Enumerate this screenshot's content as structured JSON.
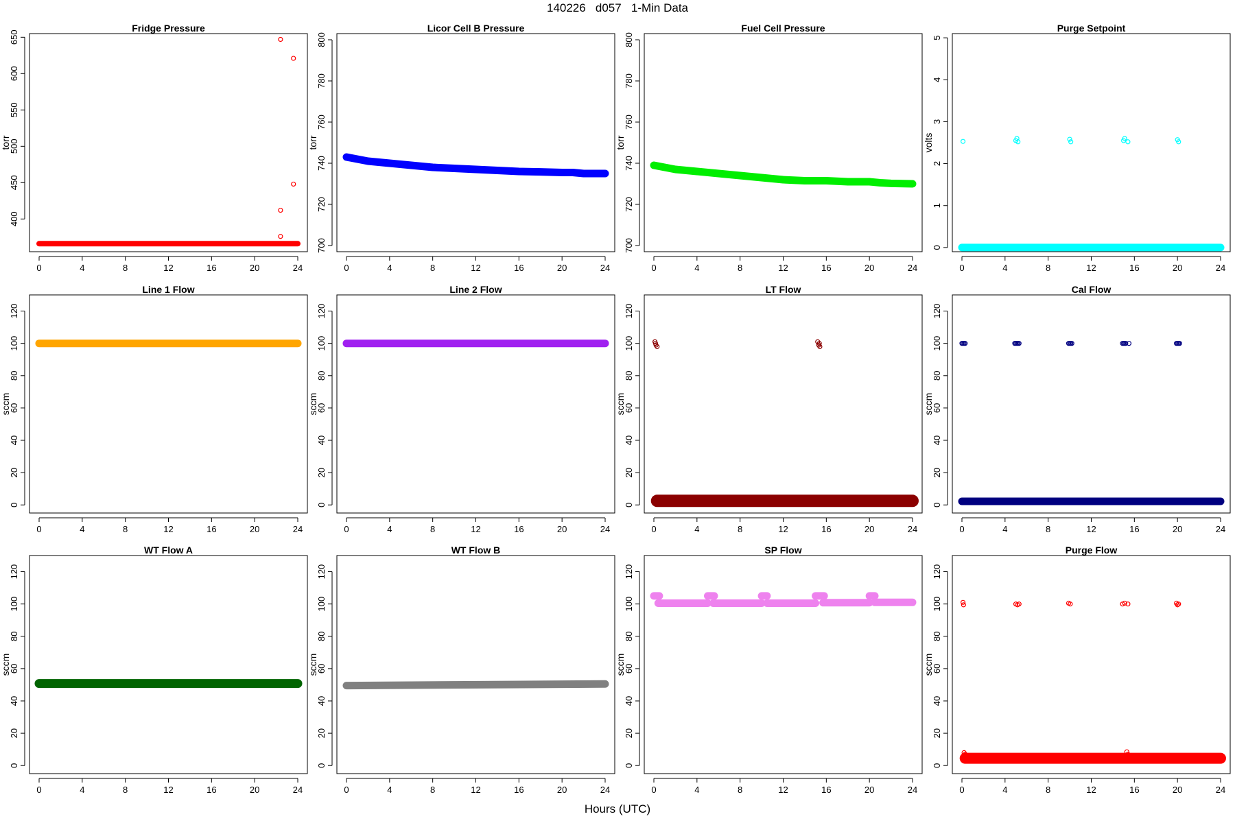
{
  "figure": {
    "title": "140226   d057   1-Min Data",
    "xlabel": "Hours (UTC)"
  },
  "chart_data": [
    {
      "type": "scatter",
      "title": "Fridge Pressure",
      "ylabel": "torr",
      "color": "#ff0000",
      "xlim": [
        0,
        24
      ],
      "ylim": [
        355,
        655
      ],
      "yticks": [
        400,
        450,
        500,
        550,
        600,
        650
      ],
      "xticks": [
        0,
        4,
        8,
        12,
        16,
        20,
        24
      ],
      "bands": [
        {
          "x": [
            0,
            24
          ],
          "y": [
            366,
            366
          ],
          "thickness": 2
        }
      ],
      "points": [
        [
          22.4,
          647
        ],
        [
          23.6,
          621
        ],
        [
          23.6,
          448
        ],
        [
          22.4,
          412
        ],
        [
          22.4,
          376
        ]
      ]
    },
    {
      "type": "scatter",
      "title": "Licor Cell B Pressure",
      "ylabel": "torr",
      "color": "#0000ff",
      "xlim": [
        0,
        24
      ],
      "ylim": [
        697,
        803
      ],
      "yticks": [
        700,
        720,
        740,
        760,
        780,
        800
      ],
      "xticks": [
        0,
        4,
        8,
        12,
        16,
        20,
        24
      ],
      "bands": [
        {
          "x": [
            0,
            1,
            2,
            4,
            6,
            8,
            10,
            12,
            14,
            16,
            18,
            20,
            21,
            22,
            24
          ],
          "y": [
            743,
            742,
            741,
            740,
            739,
            738,
            737.5,
            737,
            736.5,
            736,
            735.8,
            735.5,
            735.5,
            735,
            735
          ],
          "thickness": 3.5
        }
      ],
      "points": []
    },
    {
      "type": "scatter",
      "title": "Fuel Cell Pressure",
      "ylabel": "torr",
      "color": "#00ee00",
      "xlim": [
        0,
        24
      ],
      "ylim": [
        697,
        803
      ],
      "yticks": [
        700,
        720,
        740,
        760,
        780,
        800
      ],
      "xticks": [
        0,
        4,
        8,
        12,
        16,
        20,
        24
      ],
      "bands": [
        {
          "x": [
            0,
            1,
            2,
            4,
            6,
            8,
            10,
            12,
            14,
            16,
            18,
            20,
            21,
            22,
            24
          ],
          "y": [
            739,
            738,
            737,
            736,
            735,
            734,
            733,
            732,
            731.5,
            731.5,
            731,
            731,
            730.5,
            730.2,
            730
          ],
          "thickness": 3.5
        }
      ],
      "points": []
    },
    {
      "type": "scatter",
      "title": "Purge Setpoint",
      "ylabel": "volts",
      "color": "#00ffff",
      "xlim": [
        0,
        24
      ],
      "ylim": [
        -0.1,
        5.1
      ],
      "yticks": [
        0,
        1,
        2,
        3,
        4,
        5
      ],
      "xticks": [
        0,
        4,
        8,
        12,
        16,
        20,
        24
      ],
      "bands": [
        {
          "x": [
            0,
            24
          ],
          "y": [
            0,
            0
          ],
          "thickness": 3.5
        }
      ],
      "points": [
        [
          0.1,
          2.53
        ],
        [
          5.0,
          2.55
        ],
        [
          5.1,
          2.6
        ],
        [
          5.2,
          2.52
        ],
        [
          10.0,
          2.58
        ],
        [
          10.1,
          2.52
        ],
        [
          15.0,
          2.55
        ],
        [
          15.1,
          2.6
        ],
        [
          15.4,
          2.52
        ],
        [
          20.0,
          2.57
        ],
        [
          20.1,
          2.52
        ]
      ]
    },
    {
      "type": "scatter",
      "title": "Line 1 Flow",
      "ylabel": "sccm",
      "color": "#ffa500",
      "xlim": [
        0,
        24
      ],
      "ylim": [
        -5,
        130
      ],
      "yticks": [
        0,
        20,
        40,
        60,
        80,
        100,
        120
      ],
      "xticks": [
        0,
        4,
        8,
        12,
        16,
        20,
        24
      ],
      "bands": [
        {
          "x": [
            0,
            24
          ],
          "y": [
            100,
            100
          ],
          "thickness": 3.5
        }
      ],
      "points": []
    },
    {
      "type": "scatter",
      "title": "Line 2 Flow",
      "ylabel": "sccm",
      "color": "#a020f0",
      "xlim": [
        0,
        24
      ],
      "ylim": [
        -5,
        130
      ],
      "yticks": [
        0,
        20,
        40,
        60,
        80,
        100,
        120
      ],
      "xticks": [
        0,
        4,
        8,
        12,
        16,
        20,
        24
      ],
      "bands": [
        {
          "x": [
            0,
            24
          ],
          "y": [
            100,
            100
          ],
          "thickness": 3.5
        }
      ],
      "points": []
    },
    {
      "type": "scatter",
      "title": "LT Flow",
      "ylabel": "sccm",
      "color": "#8b0000",
      "xlim": [
        0,
        24
      ],
      "ylim": [
        -5,
        130
      ],
      "yticks": [
        0,
        20,
        40,
        60,
        80,
        100,
        120
      ],
      "xticks": [
        0,
        4,
        8,
        12,
        16,
        20,
        24
      ],
      "bands": [
        {
          "x": [
            0.3,
            24
          ],
          "y": [
            2.5,
            2.5
          ],
          "thickness": 7
        }
      ],
      "points": [
        [
          0.1,
          101
        ],
        [
          0.2,
          99
        ],
        [
          0.3,
          98
        ],
        [
          0.15,
          100
        ],
        [
          15.2,
          101
        ],
        [
          15.3,
          99
        ],
        [
          15.4,
          98
        ],
        [
          15.35,
          100
        ],
        [
          0.05,
          4
        ]
      ]
    },
    {
      "type": "scatter",
      "title": "Cal Flow",
      "ylabel": "sccm",
      "color": "#000080",
      "xlim": [
        0,
        24
      ],
      "ylim": [
        -5,
        130
      ],
      "yticks": [
        0,
        20,
        40,
        60,
        80,
        100,
        120
      ],
      "xticks": [
        0,
        4,
        8,
        12,
        16,
        20,
        24
      ],
      "bands": [
        {
          "x": [
            0,
            24
          ],
          "y": [
            2.2,
            2.2
          ],
          "thickness": 3.5
        }
      ],
      "points": [
        [
          0.0,
          100
        ],
        [
          0.1,
          100
        ],
        [
          0.2,
          100
        ],
        [
          0.3,
          100
        ],
        [
          4.9,
          100
        ],
        [
          5.0,
          100
        ],
        [
          5.1,
          100
        ],
        [
          5.2,
          100
        ],
        [
          5.3,
          100
        ],
        [
          9.9,
          100
        ],
        [
          10.0,
          100
        ],
        [
          10.1,
          100
        ],
        [
          10.2,
          100
        ],
        [
          14.9,
          100
        ],
        [
          15.0,
          100
        ],
        [
          15.1,
          100
        ],
        [
          15.2,
          100
        ],
        [
          15.5,
          100
        ],
        [
          19.9,
          100
        ],
        [
          20.0,
          100
        ],
        [
          20.1,
          100
        ],
        [
          20.2,
          100
        ]
      ]
    },
    {
      "type": "scatter",
      "title": "WT Flow A",
      "ylabel": "sccm",
      "color": "#006400",
      "xlim": [
        0,
        24
      ],
      "ylim": [
        -5,
        130
      ],
      "yticks": [
        0,
        20,
        40,
        60,
        80,
        100,
        120
      ],
      "xticks": [
        0,
        4,
        8,
        12,
        16,
        20,
        24
      ],
      "bands": [
        {
          "x": [
            0,
            24
          ],
          "y": [
            50.8,
            50.8
          ],
          "thickness": 4.5
        }
      ],
      "points": [
        [
          0.1,
          51.5
        ]
      ]
    },
    {
      "type": "scatter",
      "title": "WT Flow B",
      "ylabel": "sccm",
      "color": "#808080",
      "xlim": [
        0,
        24
      ],
      "ylim": [
        -5,
        130
      ],
      "yticks": [
        0,
        20,
        40,
        60,
        80,
        100,
        120
      ],
      "xticks": [
        0,
        4,
        8,
        12,
        16,
        20,
        24
      ],
      "bands": [
        {
          "x": [
            0,
            24
          ],
          "y": [
            49.5,
            50.5
          ],
          "thickness": 3.5
        }
      ],
      "points": []
    },
    {
      "type": "scatter",
      "title": "SP Flow",
      "ylabel": "sccm",
      "color": "#ee82ee",
      "xlim": [
        0,
        24
      ],
      "ylim": [
        -5,
        130
      ],
      "yticks": [
        0,
        20,
        40,
        60,
        80,
        100,
        120
      ],
      "xticks": [
        0,
        4,
        8,
        12,
        16,
        20,
        24
      ],
      "bands": [
        {
          "x": [
            0.4,
            5.0
          ],
          "y": [
            100.5,
            100.5
          ],
          "thickness": 3.5
        },
        {
          "x": [
            5.5,
            10.0
          ],
          "y": [
            100.5,
            100.5
          ],
          "thickness": 3.5
        },
        {
          "x": [
            10.5,
            15.0
          ],
          "y": [
            100.5,
            100.5
          ],
          "thickness": 3.5
        },
        {
          "x": [
            15.7,
            20.0
          ],
          "y": [
            100.8,
            100.8
          ],
          "thickness": 3.5
        },
        {
          "x": [
            20.5,
            24
          ],
          "y": [
            101,
            101
          ],
          "thickness": 3.5
        },
        {
          "x": [
            0.0,
            0.5
          ],
          "y": [
            105,
            105
          ],
          "thickness": 3.5
        },
        {
          "x": [
            5.0,
            5.6
          ],
          "y": [
            105,
            105
          ],
          "thickness": 3.5
        },
        {
          "x": [
            10.0,
            10.5
          ],
          "y": [
            105,
            105
          ],
          "thickness": 3.5
        },
        {
          "x": [
            15.0,
            15.8
          ],
          "y": [
            105,
            105
          ],
          "thickness": 3.5
        },
        {
          "x": [
            20.0,
            20.5
          ],
          "y": [
            105,
            105
          ],
          "thickness": 3.5
        }
      ],
      "points": []
    },
    {
      "type": "scatter",
      "title": "Purge Flow",
      "ylabel": "sccm",
      "color": "#ff0000",
      "xlim": [
        0,
        24
      ],
      "ylim": [
        -5,
        130
      ],
      "yticks": [
        0,
        20,
        40,
        60,
        80,
        100,
        120
      ],
      "xticks": [
        0,
        4,
        8,
        12,
        16,
        20,
        24
      ],
      "bands": [
        {
          "x": [
            0.3,
            24
          ],
          "y": [
            4.5,
            4.5
          ],
          "thickness": 6
        }
      ],
      "points": [
        [
          0.1,
          101
        ],
        [
          0.15,
          99.5
        ],
        [
          5.0,
          100
        ],
        [
          5.15,
          99.5
        ],
        [
          5.3,
          100
        ],
        [
          9.9,
          100.5
        ],
        [
          10.05,
          100
        ],
        [
          14.9,
          100
        ],
        [
          15.1,
          100.5
        ],
        [
          15.4,
          100
        ],
        [
          19.9,
          100.5
        ],
        [
          20.0,
          99.5
        ],
        [
          20.1,
          100
        ],
        [
          0.1,
          5
        ],
        [
          0.2,
          8
        ],
        [
          0.3,
          7
        ],
        [
          15.3,
          8.5
        ],
        [
          15.4,
          7
        ]
      ]
    }
  ]
}
